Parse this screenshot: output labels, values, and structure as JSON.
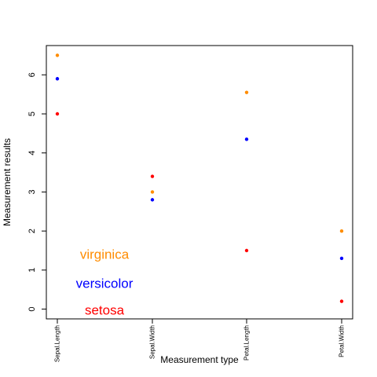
{
  "chart_data": {
    "type": "scatter",
    "title": "",
    "xlabel": "Measurement type",
    "ylabel": "Measurement results",
    "categories": [
      "Sepal.Length",
      "Sepal.Width",
      "Petal.Length",
      "Petal.Width"
    ],
    "ylim": [
      -0.25,
      6.75
    ],
    "yticks": [
      0,
      1,
      2,
      3,
      4,
      5,
      6
    ],
    "grid": false,
    "legend_placement": "bottom-left",
    "series": [
      {
        "name": "virginica",
        "color": "#FF8C00",
        "values": [
          6.5,
          3.0,
          5.55,
          2.0
        ]
      },
      {
        "name": "versicolor",
        "color": "#0000FF",
        "values": [
          5.9,
          2.8,
          4.35,
          1.3
        ]
      },
      {
        "name": "setosa",
        "color": "#FF0000",
        "values": [
          5.0,
          3.4,
          1.5,
          0.2
        ]
      }
    ]
  }
}
